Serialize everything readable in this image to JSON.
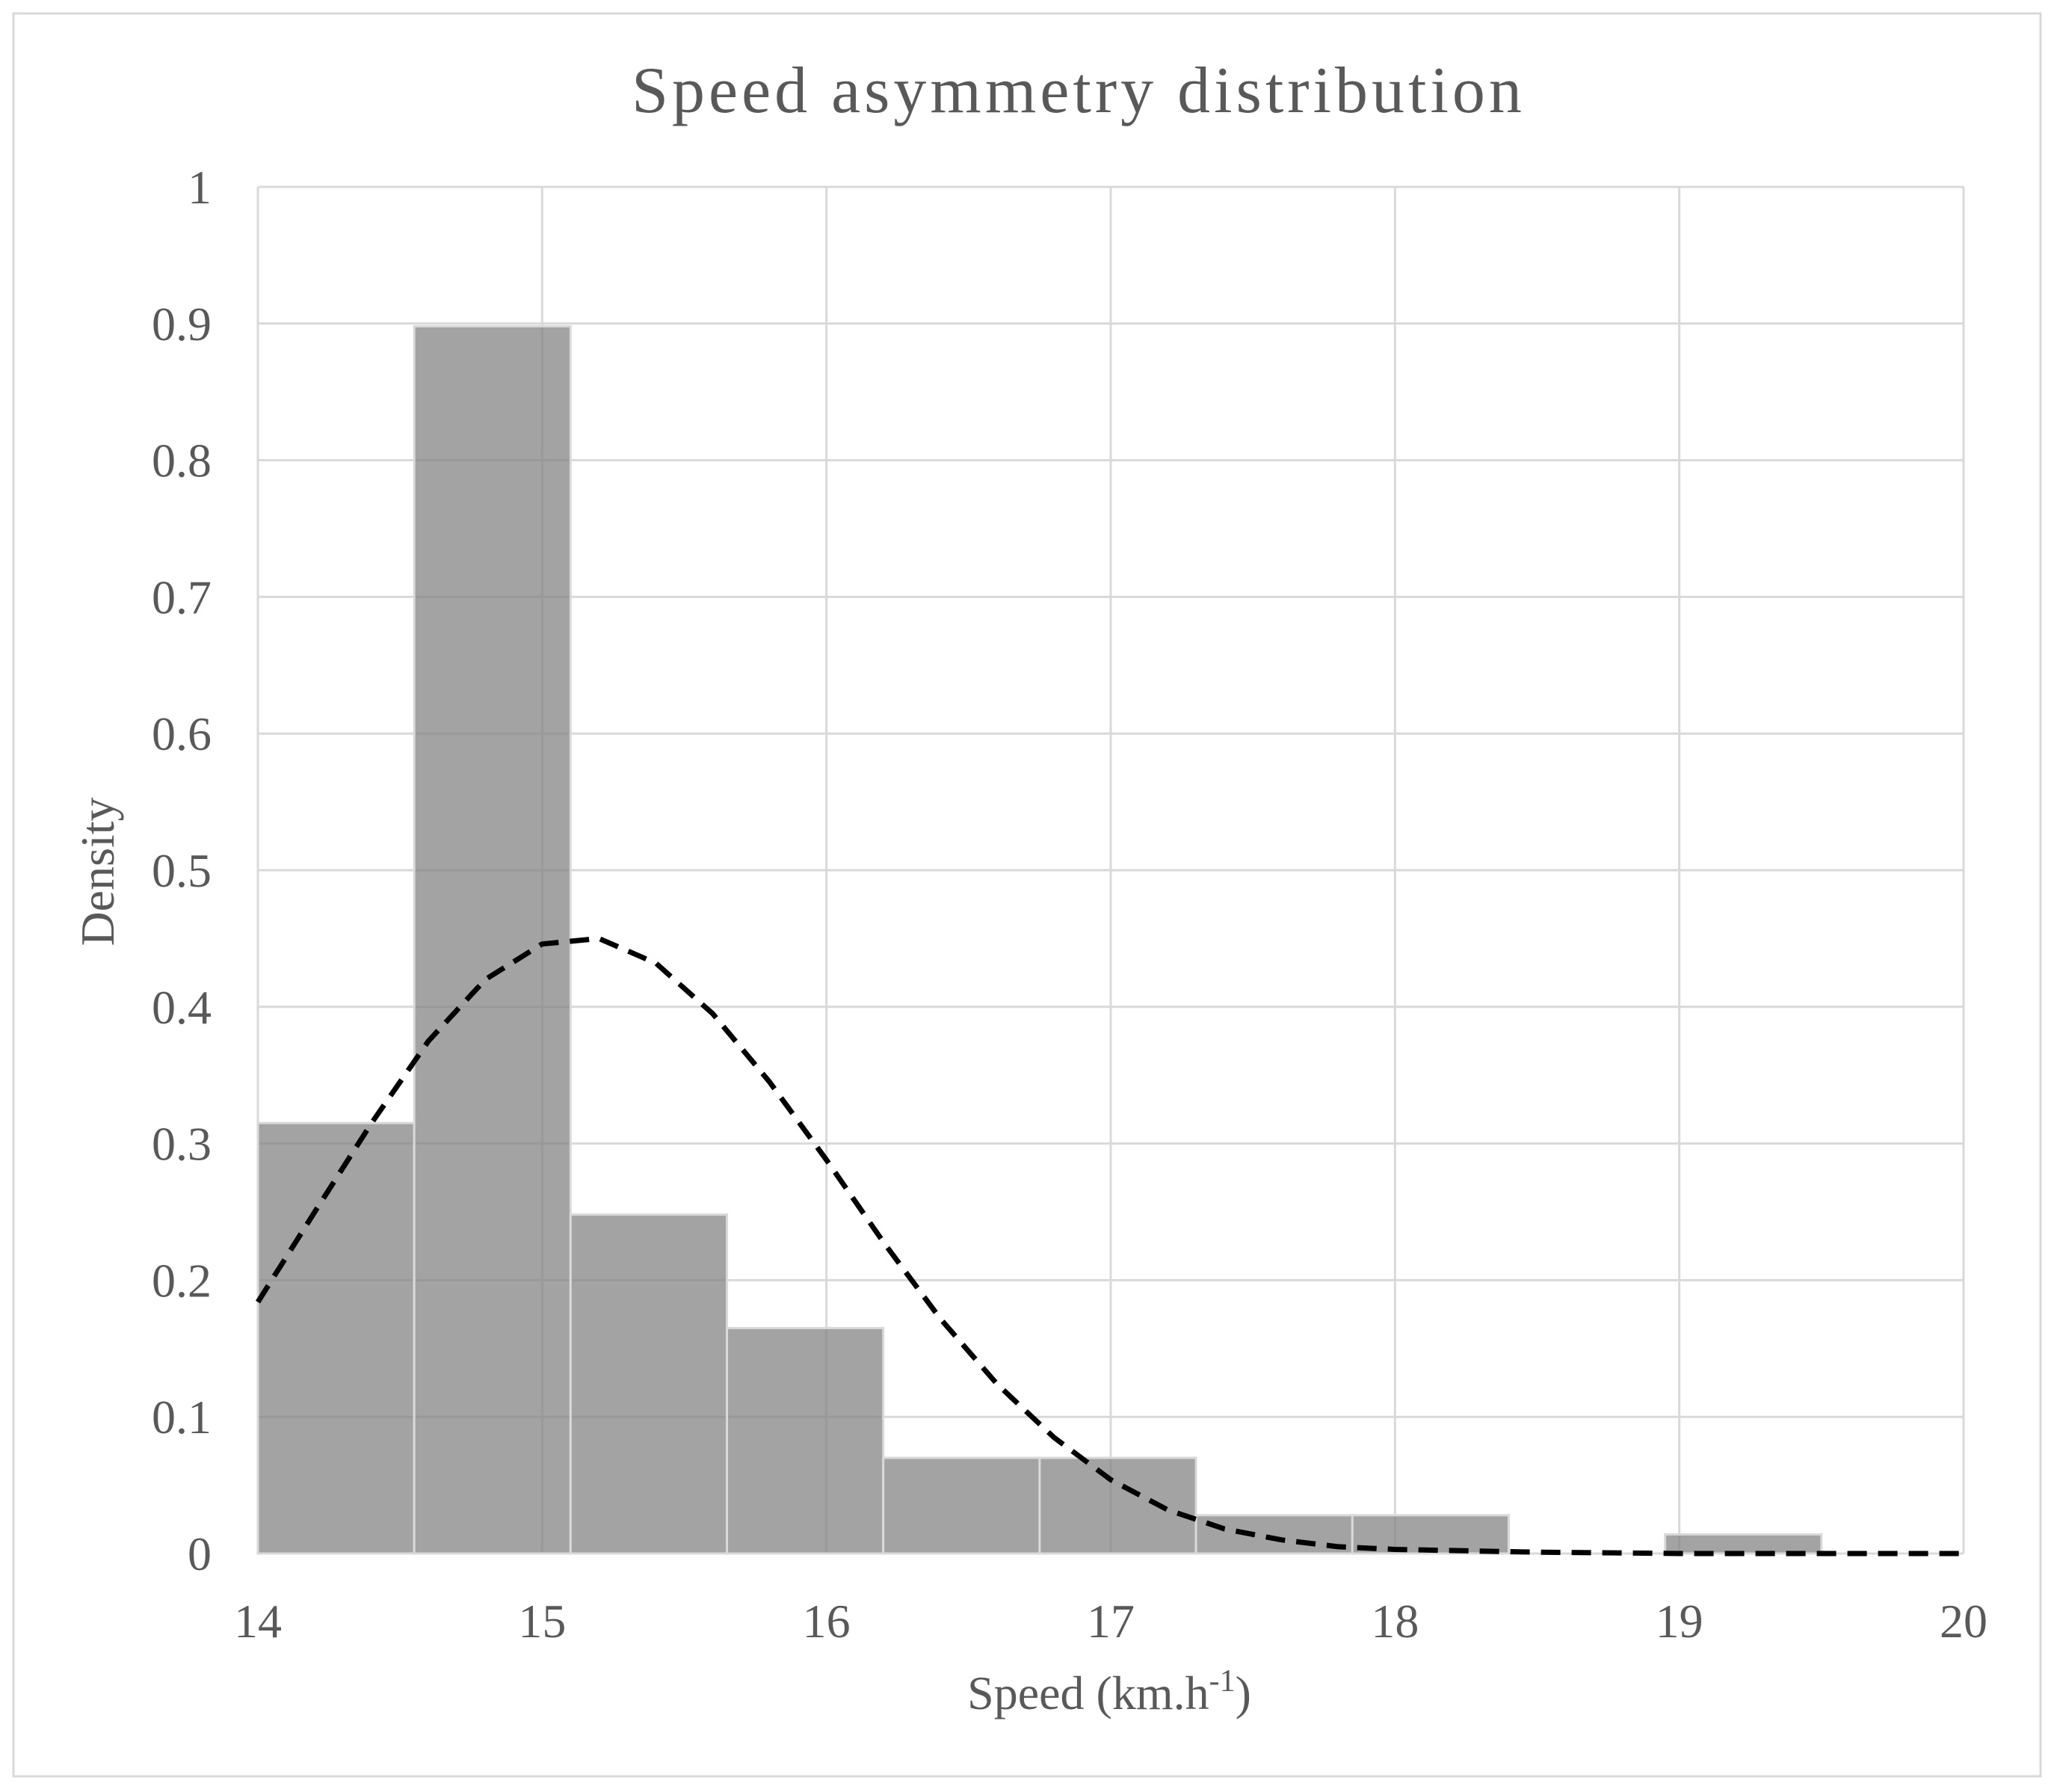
{
  "chart_data": {
    "type": "bar",
    "title": "Speed asymmetry distribution",
    "xlabel_main": "Speed (km.h",
    "xlabel_sup": "-1",
    "xlabel_close": ")",
    "ylabel": "Density",
    "xlim": [
      14,
      20
    ],
    "ylim": [
      0,
      1
    ],
    "x_ticks": [
      "14",
      "15",
      "16",
      "17",
      "18",
      "19",
      "20"
    ],
    "y_ticks": [
      "0",
      "0.1",
      "0.2",
      "0.3",
      "0.4",
      "0.5",
      "0.6",
      "0.7",
      "0.8",
      "0.9",
      "1"
    ],
    "grid": true,
    "bar_color": "#808080",
    "bins": [
      {
        "x0": 14.0,
        "x1": 14.55,
        "value": 0.315
      },
      {
        "x0": 14.55,
        "x1": 15.1,
        "value": 0.898
      },
      {
        "x0": 15.1,
        "x1": 15.65,
        "value": 0.248
      },
      {
        "x0": 15.65,
        "x1": 16.2,
        "value": 0.165
      },
      {
        "x0": 16.2,
        "x1": 16.75,
        "value": 0.07
      },
      {
        "x0": 16.75,
        "x1": 17.3,
        "value": 0.07
      },
      {
        "x0": 17.3,
        "x1": 17.85,
        "value": 0.028
      },
      {
        "x0": 17.85,
        "x1": 18.4,
        "value": 0.028
      },
      {
        "x0": 18.95,
        "x1": 19.5,
        "value": 0.014
      }
    ],
    "curve": {
      "style": "dashed",
      "points": [
        [
          14.0,
          0.184
        ],
        [
          14.2,
          0.25
        ],
        [
          14.4,
          0.315
        ],
        [
          14.6,
          0.375
        ],
        [
          14.8,
          0.42
        ],
        [
          15.0,
          0.446
        ],
        [
          15.2,
          0.45
        ],
        [
          15.4,
          0.432
        ],
        [
          15.6,
          0.395
        ],
        [
          15.8,
          0.345
        ],
        [
          16.0,
          0.288
        ],
        [
          16.2,
          0.228
        ],
        [
          16.4,
          0.172
        ],
        [
          16.6,
          0.124
        ],
        [
          16.8,
          0.085
        ],
        [
          17.0,
          0.054
        ],
        [
          17.2,
          0.032
        ],
        [
          17.4,
          0.018
        ],
        [
          17.6,
          0.01
        ],
        [
          17.8,
          0.005
        ],
        [
          18.0,
          0.003
        ],
        [
          18.5,
          0.001
        ],
        [
          19.0,
          0.0
        ],
        [
          20.0,
          0.0
        ]
      ]
    }
  }
}
